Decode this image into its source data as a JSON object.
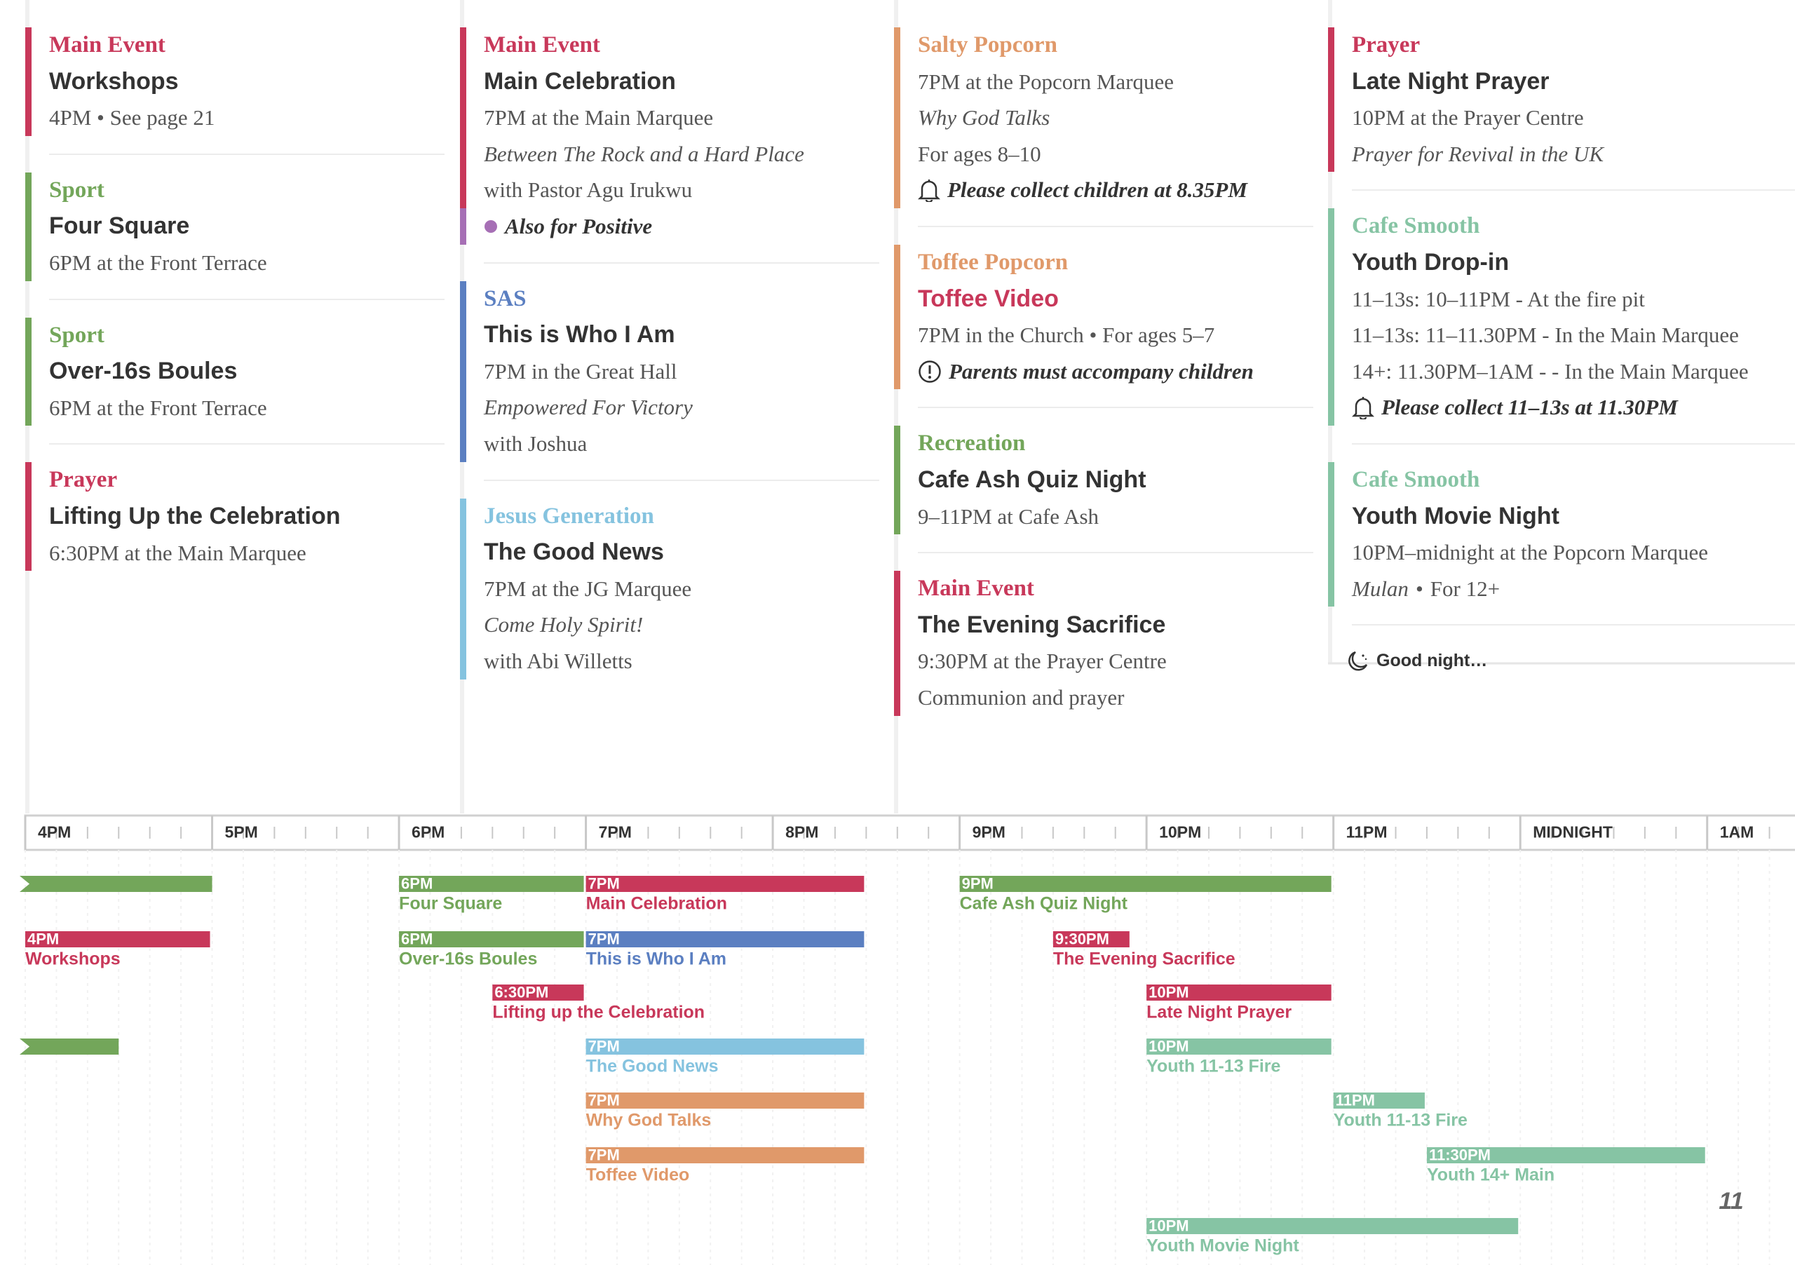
{
  "columns": [
    {
      "events": [
        {
          "category": "Main Event",
          "color": "#c8385a",
          "title": "Workshops",
          "lines": [
            {
              "text": "4PM • See page 21"
            }
          ]
        },
        {
          "category": "Sport",
          "color": "#73a65a",
          "title": "Four Square",
          "lines": [
            {
              "text": "6PM at the Front Terrace"
            }
          ]
        },
        {
          "category": "Sport",
          "color": "#73a65a",
          "title": "Over-16s Boules",
          "lines": [
            {
              "text": "6PM at the Front Terrace"
            }
          ]
        },
        {
          "category": "Prayer",
          "color": "#c8385a",
          "title": "Lifting Up the Celebration",
          "lines": [
            {
              "text": "6:30PM at the Main Marquee"
            }
          ]
        }
      ]
    },
    {
      "events": [
        {
          "category": "Main Event",
          "color": "#c8385a",
          "title": "Main Celebration",
          "lines": [
            {
              "text": "7PM at the Main Marquee"
            },
            {
              "text": "Between The Rock and a Hard Place",
              "style": "italic"
            },
            {
              "text": "with Pastor Agu Irukwu"
            },
            {
              "text": "Also for Positive",
              "style": "bold-italic",
              "icon": "dot",
              "color": "#a66fb5"
            }
          ]
        },
        {
          "category": "SAS",
          "color": "#5b7fc1",
          "title": "This is Who I Am",
          "lines": [
            {
              "text": "7PM in the Great Hall"
            },
            {
              "text": "Empowered For Victory",
              "style": "italic"
            },
            {
              "text": "with Joshua"
            }
          ]
        },
        {
          "category": "Jesus Generation",
          "color": "#85c3df",
          "title": "The Good News",
          "lines": [
            {
              "text": "7PM at the JG Marquee"
            },
            {
              "text": "Come Holy Spirit!",
              "style": "italic"
            },
            {
              "text": "with Abi Willetts"
            }
          ]
        }
      ]
    },
    {
      "events": [
        {
          "category": "Salty Popcorn",
          "color": "#e0996a",
          "lines": [
            {
              "text": "7PM at the Popcorn Marquee"
            },
            {
              "text": "Why God Talks",
              "style": "italic"
            },
            {
              "text": "For ages 8–10"
            },
            {
              "text": "Please collect children at 8.35PM",
              "style": "bold-italic",
              "icon": "bell"
            }
          ]
        },
        {
          "category": "Toffee Popcorn",
          "color": "#e0996a",
          "title": "Toffee Video",
          "title_color": "#c8385a",
          "lines": [
            {
              "text": "7PM in the Church • For ages 5–7"
            },
            {
              "text": "Parents must accompany children",
              "style": "bold-italic",
              "icon": "alert"
            }
          ]
        },
        {
          "category": "Recreation",
          "color": "#73a65a",
          "title": "Cafe Ash Quiz Night",
          "lines": [
            {
              "text": "9–11PM at Cafe Ash"
            }
          ]
        },
        {
          "category": "Main Event",
          "color": "#c8385a",
          "title": "The Evening Sacrifice",
          "lines": [
            {
              "text": "9:30PM at the Prayer Centre"
            },
            {
              "text": "Communion and prayer"
            }
          ]
        }
      ]
    },
    {
      "events": [
        {
          "category": "Prayer",
          "color": "#c8385a",
          "title": "Late Night Prayer",
          "lines": [
            {
              "text": "10PM at the Prayer Centre"
            },
            {
              "text": "Prayer for Revival in the UK",
              "style": "italic"
            }
          ]
        },
        {
          "category": "Cafe Smooth",
          "color": "#86c4a4",
          "title": "Youth Drop-in",
          "lines": [
            {
              "text": "11–13s: 10–11PM - At the fire pit"
            },
            {
              "text": "11–13s: 11–11.30PM - In the Main Marquee"
            },
            {
              "text": "14+: 11.30PM–1AM - - In the Main Marquee"
            },
            {
              "text": "Please collect 11–13s at 11.30PM",
              "style": "bold-italic",
              "icon": "bell"
            }
          ]
        },
        {
          "category": "Cafe Smooth",
          "color": "#86c4a4",
          "title": "Youth Movie Night",
          "lines": [
            {
              "text": "10PM–midnight at the Popcorn Marquee"
            },
            {
              "parts": [
                {
                  "text": "Mulan",
                  "style": "italic"
                },
                {
                  "text": "•"
                },
                {
                  "text": "For 12+"
                }
              ]
            }
          ]
        }
      ],
      "closing": {
        "text": "Good night…",
        "icon": "moon"
      }
    }
  ],
  "chart_data": {
    "type": "gantt",
    "xlim": [
      16,
      25.47
    ],
    "xticks": [
      {
        "value": 16,
        "label": "4PM"
      },
      {
        "value": 17,
        "label": "5PM"
      },
      {
        "value": 18,
        "label": "6PM"
      },
      {
        "value": 19,
        "label": "7PM"
      },
      {
        "value": 20,
        "label": "8PM"
      },
      {
        "value": 21,
        "label": "9PM"
      },
      {
        "value": 22,
        "label": "10PM"
      },
      {
        "value": 23,
        "label": "11PM"
      },
      {
        "value": 24,
        "label": "MIDNIGHT"
      },
      {
        "value": 25,
        "label": "1AM"
      }
    ],
    "rows": [
      [
        {
          "start": null,
          "end": 17,
          "color": "#73a65a"
        },
        {
          "start": 18,
          "end": 19,
          "start_label": "6PM",
          "name": "Four Square",
          "color": "#73a65a"
        },
        {
          "start": 19,
          "end": 20.5,
          "start_label": "7PM",
          "name": "Main Celebration",
          "color": "#c8385a"
        },
        {
          "start": 21,
          "end": 23,
          "start_label": "9PM",
          "name": "Cafe Ash Quiz Night",
          "color": "#73a65a"
        }
      ],
      [
        {
          "start": 16,
          "end": 17,
          "start_label": "4PM",
          "name": "Workshops",
          "color": "#c8385a"
        },
        {
          "start": 18,
          "end": 19,
          "start_label": "6PM",
          "name": "Over-16s Boules",
          "color": "#73a65a"
        },
        {
          "start": 19,
          "end": 20.5,
          "start_label": "7PM",
          "name": "This is Who I Am",
          "color": "#5b7fc1"
        },
        {
          "start": 21.5,
          "end": 21.92,
          "start_label": "9:30PM",
          "name": "The Evening Sacrifice",
          "color": "#c8385a"
        }
      ],
      [
        {
          "start": 18.5,
          "end": 19,
          "start_label": "6:30PM",
          "name": "Lifting up the Celebration",
          "color": "#c8385a"
        },
        {
          "start": 22,
          "end": 23,
          "start_label": "10PM",
          "name": "Late Night Prayer",
          "color": "#c8385a"
        }
      ],
      [
        {
          "start": null,
          "end": 16.5,
          "color": "#73a65a"
        },
        {
          "start": 19,
          "end": 20.5,
          "start_label": "7PM",
          "name": "The Good News",
          "color": "#85c3df"
        },
        {
          "start": 22,
          "end": 23,
          "start_label": "10PM",
          "name": "Youth 11-13 Fire",
          "color": "#86c4a4"
        }
      ],
      [
        {
          "start": 19,
          "end": 20.5,
          "start_label": "7PM",
          "name": "Why God Talks",
          "color": "#e0996a"
        },
        {
          "start": 23,
          "end": 23.5,
          "start_label": "11PM",
          "name": "Youth 11-13 Fire",
          "color": "#86c4a4"
        }
      ],
      [
        {
          "start": 19,
          "end": 20.5,
          "start_label": "7PM",
          "name": "Toffee Video",
          "color": "#e0996a"
        },
        {
          "start": 23.5,
          "end": 25,
          "start_label": "11:30PM",
          "name": "Youth 14+ Main",
          "color": "#86c4a4"
        }
      ],
      [
        {
          "start": 22,
          "end": 24,
          "start_label": "10PM",
          "name": "Youth Movie Night",
          "color": "#86c4a4"
        }
      ]
    ]
  },
  "page_number": "11"
}
